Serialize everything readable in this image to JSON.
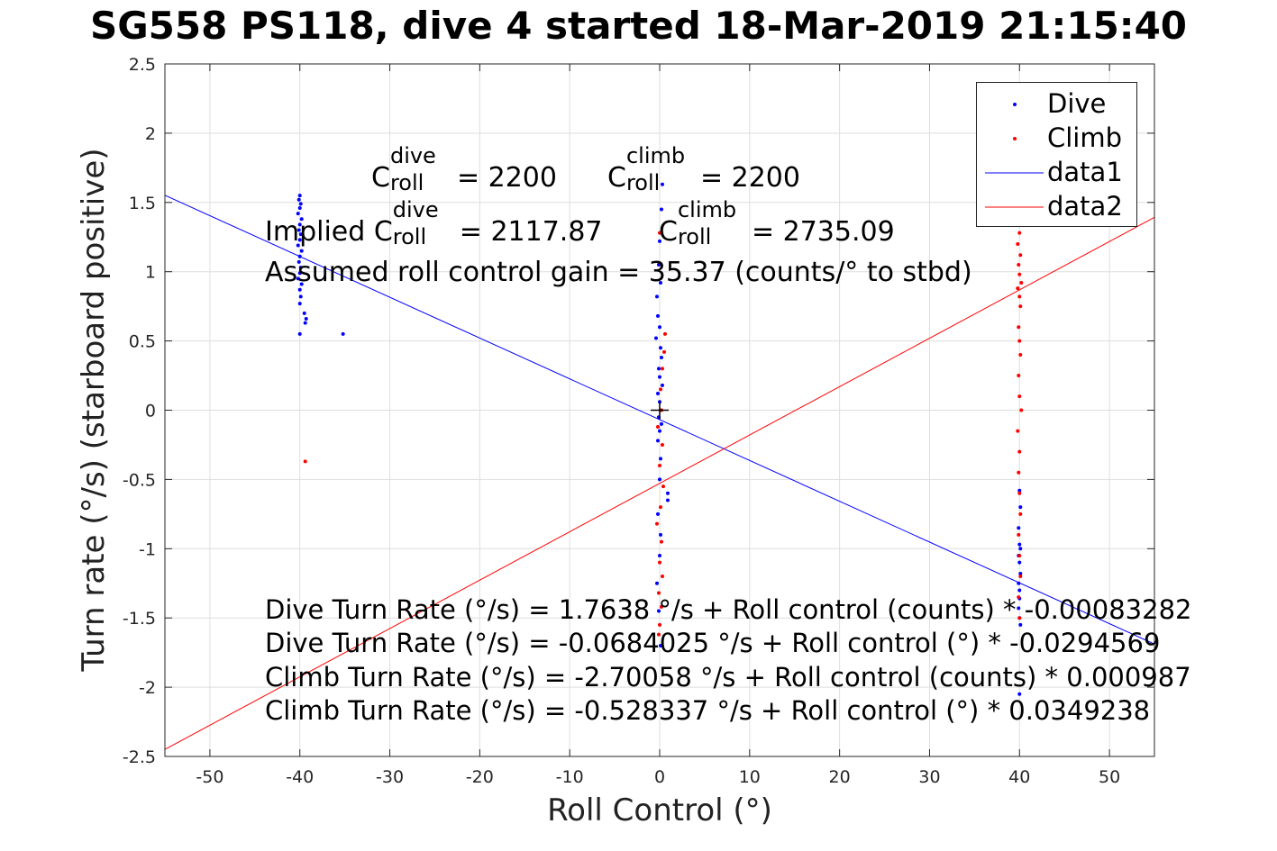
{
  "title": "SG558 PS118, dive 4 started 18-Mar-2019 21:15:40",
  "annotations": {
    "c_dive_base": "C",
    "c_dive_sup": "dive",
    "c_dive_sub": "roll",
    "c_dive_val": "= 2200",
    "c_climb_base": "C",
    "c_climb_sup": "climb",
    "c_climb_sub": "roll",
    "c_climb_val": "= 2200",
    "implied_prefix": "Implied C",
    "implied_dive_sup": "dive",
    "implied_dive_sub": "roll",
    "implied_dive_val": "= 2117.87",
    "implied_climb_base": "C",
    "implied_climb_sup": "climb",
    "implied_climb_sub": "roll",
    "implied_climb_val": "= 2735.09",
    "gain": "Assumed roll control gain = 35.37 (counts/° to stbd)",
    "eq1": "Dive Turn Rate (°/s) = 1.7638 °/s + Roll control (counts) * -0.00083282",
    "eq2": "Dive Turn Rate (°/s) = -0.0684025 °/s + Roll control (°) * -0.0294569",
    "eq3": "Climb Turn Rate (°/s) = -2.70058 °/s + Roll control (counts) * 0.000987",
    "eq4": "Climb Turn Rate (°/s) = -0.528337 °/s + Roll control (°) * 0.0349238"
  },
  "legend": {
    "items": [
      {
        "label": "Dive",
        "kind": "marker",
        "color": "#0000ff"
      },
      {
        "label": "Climb",
        "kind": "marker",
        "color": "#ff0000"
      },
      {
        "label": "data1",
        "kind": "line",
        "color": "#0000ff"
      },
      {
        "label": "data2",
        "kind": "line",
        "color": "#ff0000"
      }
    ]
  },
  "chart_data": {
    "type": "scatter",
    "xlabel": "Roll Control (°)",
    "ylabel": "Turn rate (°/s) (starboard positive)",
    "xlim": [
      -55,
      55
    ],
    "ylim": [
      -2.5,
      2.5
    ],
    "xticks": [
      "-50",
      "-40",
      "-30",
      "-20",
      "-10",
      "0",
      "10",
      "20",
      "30",
      "40",
      "50"
    ],
    "yticks": [
      "2.5",
      "2",
      "1.5",
      "1",
      "0.5",
      "0",
      "-0.5",
      "-1",
      "-1.5",
      "-2",
      "-2.5"
    ],
    "grid": true,
    "legend_position": "top-right",
    "series": [
      {
        "name": "Dive",
        "type": "scatter",
        "color": "#0000ff",
        "points": [
          [
            -40.0,
            1.55
          ],
          [
            -40.1,
            1.52
          ],
          [
            -39.9,
            1.49
          ],
          [
            -40.0,
            1.46
          ],
          [
            -40.2,
            1.42
          ],
          [
            -39.8,
            1.38
          ],
          [
            -40.0,
            1.34
          ],
          [
            -40.1,
            1.3
          ],
          [
            -39.9,
            1.27
          ],
          [
            -40.0,
            1.23
          ],
          [
            -40.2,
            1.19
          ],
          [
            -39.8,
            1.15
          ],
          [
            -40.0,
            1.11
          ],
          [
            -40.1,
            1.07
          ],
          [
            -39.9,
            1.03
          ],
          [
            -40.0,
            0.99
          ],
          [
            -40.2,
            0.95
          ],
          [
            -39.8,
            0.91
          ],
          [
            -40.0,
            0.87
          ],
          [
            -39.9,
            0.82
          ],
          [
            -40.0,
            0.77
          ],
          [
            -39.5,
            0.7
          ],
          [
            -39.3,
            0.66
          ],
          [
            -39.4,
            0.63
          ],
          [
            -40.0,
            0.55
          ],
          [
            -35.2,
            0.55
          ],
          [
            0.3,
            1.63
          ],
          [
            0.2,
            1.45
          ],
          [
            0.0,
            1.22
          ],
          [
            -0.1,
            1.05
          ],
          [
            0.1,
            0.92
          ],
          [
            -0.3,
            0.82
          ],
          [
            -0.2,
            0.68
          ],
          [
            0.0,
            0.6
          ],
          [
            -0.4,
            0.52
          ],
          [
            0.1,
            0.45
          ],
          [
            0.2,
            0.38
          ],
          [
            -0.1,
            0.3
          ],
          [
            0.0,
            0.24
          ],
          [
            0.3,
            0.18
          ],
          [
            -0.2,
            0.12
          ],
          [
            0.0,
            0.06
          ],
          [
            0.1,
            0.0
          ],
          [
            -0.1,
            -0.05
          ],
          [
            0.2,
            -0.1
          ],
          [
            0.0,
            -0.15
          ],
          [
            -0.2,
            -0.22
          ],
          [
            0.1,
            -0.35
          ],
          [
            0.0,
            -0.5
          ],
          [
            0.9,
            -0.6
          ],
          [
            0.9,
            -0.65
          ],
          [
            -0.2,
            -0.75
          ],
          [
            0.1,
            -0.9
          ],
          [
            0.0,
            -1.05
          ],
          [
            -0.3,
            -1.25
          ],
          [
            -0.1,
            -1.45
          ],
          [
            0.1,
            -1.7
          ],
          [
            40.0,
            -0.58
          ],
          [
            40.1,
            -0.7
          ],
          [
            39.9,
            -0.85
          ],
          [
            40.0,
            -0.97
          ],
          [
            40.1,
            -1.0
          ],
          [
            39.9,
            -1.05
          ],
          [
            40.0,
            -1.1
          ],
          [
            40.1,
            -1.18
          ],
          [
            39.9,
            -1.25
          ],
          [
            40.0,
            -1.3
          ],
          [
            40.0,
            -1.36
          ],
          [
            39.9,
            -1.43
          ],
          [
            40.0,
            -1.5
          ],
          [
            40.1,
            -1.55
          ],
          [
            40.0,
            -2.05
          ]
        ]
      },
      {
        "name": "Climb",
        "type": "scatter",
        "color": "#ff0000",
        "points": [
          [
            -39.4,
            -0.37
          ],
          [
            0.0,
            1.28
          ],
          [
            0.6,
            0.55
          ],
          [
            0.5,
            0.42
          ],
          [
            0.3,
            0.3
          ],
          [
            0.1,
            0.15
          ],
          [
            0.2,
            0.0
          ],
          [
            -0.2,
            -0.12
          ],
          [
            0.3,
            -0.25
          ],
          [
            0.0,
            -0.4
          ],
          [
            0.4,
            -0.55
          ],
          [
            0.1,
            -0.7
          ],
          [
            -0.3,
            -0.82
          ],
          [
            0.2,
            -0.95
          ],
          [
            0.0,
            -1.1
          ],
          [
            0.3,
            -1.2
          ],
          [
            -0.1,
            -1.32
          ],
          [
            0.2,
            -1.42
          ],
          [
            0.0,
            -1.55
          ],
          [
            -0.1,
            -1.62
          ],
          [
            40.0,
            1.28
          ],
          [
            39.8,
            1.2
          ],
          [
            40.1,
            1.12
          ],
          [
            39.9,
            1.05
          ],
          [
            40.0,
            0.98
          ],
          [
            40.2,
            0.92
          ],
          [
            39.8,
            0.88
          ],
          [
            40.0,
            0.82
          ],
          [
            40.1,
            0.75
          ],
          [
            39.9,
            0.6
          ],
          [
            40.0,
            0.5
          ],
          [
            40.1,
            0.4
          ],
          [
            39.9,
            0.25
          ],
          [
            40.0,
            0.1
          ],
          [
            40.2,
            0.0
          ],
          [
            39.8,
            -0.15
          ],
          [
            40.0,
            -0.3
          ],
          [
            39.9,
            -0.45
          ],
          [
            40.0,
            -0.6
          ],
          [
            40.1,
            -0.75
          ],
          [
            39.9,
            -0.9
          ],
          [
            40.0,
            -1.05
          ],
          [
            40.1,
            -1.2
          ],
          [
            39.9,
            -1.35
          ],
          [
            40.0,
            -1.5
          ]
        ]
      },
      {
        "name": "data1",
        "type": "line",
        "color": "#0000ff",
        "intercept": -0.0684025,
        "slope": -0.0294569
      },
      {
        "name": "data2",
        "type": "line",
        "color": "#ff0000",
        "intercept": -0.528337,
        "slope": 0.0349238
      }
    ],
    "crosshair": [
      0,
      0
    ]
  }
}
